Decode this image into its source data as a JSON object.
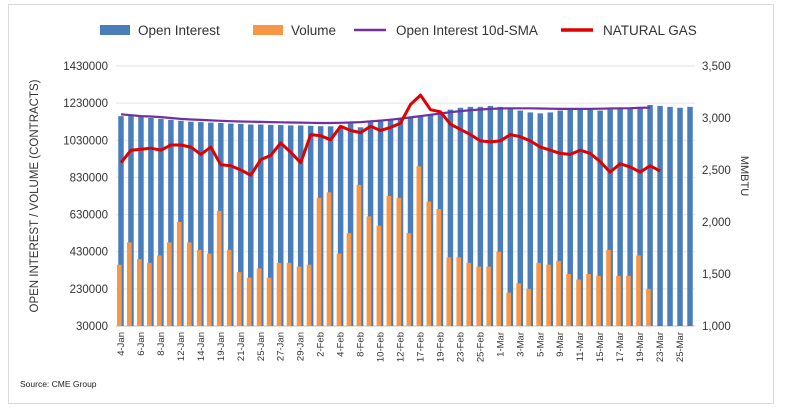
{
  "chart_data": {
    "type": "bar",
    "title": "",
    "source": "Source: CME Group",
    "legend": {
      "placement": "top",
      "entries": [
        "Open Interest",
        "Volume",
        "Open Interest 10d-SMA",
        "NATURAL GAS"
      ]
    },
    "ylabel_left": "OPEN INTEREST / VOLUME (CONTRACTS)",
    "ylabel_right": "MMBTU",
    "y_left": {
      "min": 30000,
      "max": 1430000,
      "ticks": [
        30000,
        230000,
        430000,
        630000,
        830000,
        1030000,
        1230000,
        1430000
      ],
      "tick_labels": [
        "30000",
        "230000",
        "430000",
        "630000",
        "830000",
        "1030000",
        "1230000",
        "1430000"
      ]
    },
    "y_right": {
      "min": 1000,
      "max": 3500,
      "ticks": [
        1000,
        1500,
        2000,
        2500,
        3000,
        3500
      ],
      "tick_labels": [
        "1,000",
        "1,500",
        "2,000",
        "2,500",
        "3,000",
        "3,500"
      ]
    },
    "x_tick_labels": [
      "4-Jan",
      "6-Jan",
      "8-Jan",
      "12-Jan",
      "14-Jan",
      "19-Jan",
      "21-Jan",
      "25-Jan",
      "27-Jan",
      "29-Jan",
      "2-Feb",
      "4-Feb",
      "8-Feb",
      "10-Feb",
      "12-Feb",
      "17-Feb",
      "19-Feb",
      "23-Feb",
      "25-Feb",
      "1-Mar",
      "3-Mar",
      "5-Mar",
      "9-Mar",
      "11-Mar",
      "15-Mar",
      "17-Mar",
      "19-Mar",
      "23-Mar",
      "25-Mar"
    ],
    "num_slots": 58,
    "series": [
      {
        "name": "Open Interest",
        "type": "bar",
        "color": "#4a7ebb",
        "values": [
          1160000,
          1160000,
          1155000,
          1150000,
          1145000,
          1140000,
          1135000,
          1130000,
          1128000,
          1125000,
          1123000,
          1120000,
          1118000,
          1115000,
          1115000,
          1113000,
          1112000,
          1110000,
          1110000,
          1108000,
          1106000,
          1105000,
          1105000,
          1120000,
          1100000,
          1130000,
          1140000,
          1145000,
          1150000,
          1155000,
          1160000,
          1170000,
          1180000,
          1195000,
          1205000,
          1210000,
          1210000,
          1215000,
          1210000,
          1200000,
          1190000,
          1180000,
          1175000,
          1180000,
          1190000,
          1195000,
          1200000,
          1195000,
          1190000,
          1195000,
          1200000,
          1205000,
          1210000,
          1220000,
          1215000,
          1210000,
          1205000,
          1210000
        ]
      },
      {
        "name": "Volume",
        "type": "bar",
        "color": "#f79646",
        "values": [
          360000,
          480000,
          390000,
          370000,
          410000,
          480000,
          590000,
          480000,
          440000,
          420000,
          650000,
          440000,
          320000,
          290000,
          340000,
          290000,
          370000,
          370000,
          350000,
          360000,
          720000,
          750000,
          420000,
          530000,
          790000,
          620000,
          570000,
          730000,
          720000,
          530000,
          890000,
          700000,
          660000,
          400000,
          400000,
          370000,
          350000,
          350000,
          430000,
          210000,
          260000,
          230000,
          370000,
          360000,
          380000,
          310000,
          280000,
          310000,
          300000,
          440000,
          300000,
          300000,
          410000,
          230000,
          0,
          0,
          0,
          0
        ]
      },
      {
        "name": "Open Interest 10d-SMA",
        "type": "line",
        "color": "#7030a0",
        "values": [
          1170000,
          1165000,
          1160000,
          1158000,
          1155000,
          1150000,
          1145000,
          1142000,
          1140000,
          1137000,
          1135000,
          1133000,
          1131000,
          1130000,
          1129000,
          1128000,
          1127000,
          1126000,
          1125000,
          1124000,
          1123000,
          1123000,
          1124000,
          1126000,
          1128000,
          1132000,
          1136000,
          1141000,
          1147000,
          1153000,
          1160000,
          1167000,
          1174000,
          1181000,
          1187000,
          1192000,
          1196000,
          1199000,
          1201000,
          1202000,
          1202000,
          1202000,
          1201000,
          1200000,
          1199000,
          1199000,
          1199000,
          1199000,
          1200000,
          1201000,
          1202000,
          1203000,
          1205000,
          1206000,
          null,
          null,
          null,
          null
        ]
      },
      {
        "name": "NATURAL GAS",
        "type": "line",
        "axis": "right",
        "color": "#e00000",
        "values": [
          2570,
          2690,
          2700,
          2710,
          2690,
          2740,
          2740,
          2720,
          2650,
          2720,
          2550,
          2540,
          2500,
          2450,
          2600,
          2640,
          2760,
          2670,
          2570,
          2840,
          2830,
          2790,
          2920,
          2880,
          2860,
          2920,
          2880,
          2910,
          2950,
          3130,
          3220,
          3080,
          3060,
          2940,
          2890,
          2840,
          2780,
          2770,
          2780,
          2840,
          2820,
          2780,
          2720,
          2690,
          2660,
          2650,
          2690,
          2660,
          2580,
          2480,
          2560,
          2530,
          2480,
          2540,
          2490,
          null,
          null,
          null
        ]
      }
    ]
  }
}
